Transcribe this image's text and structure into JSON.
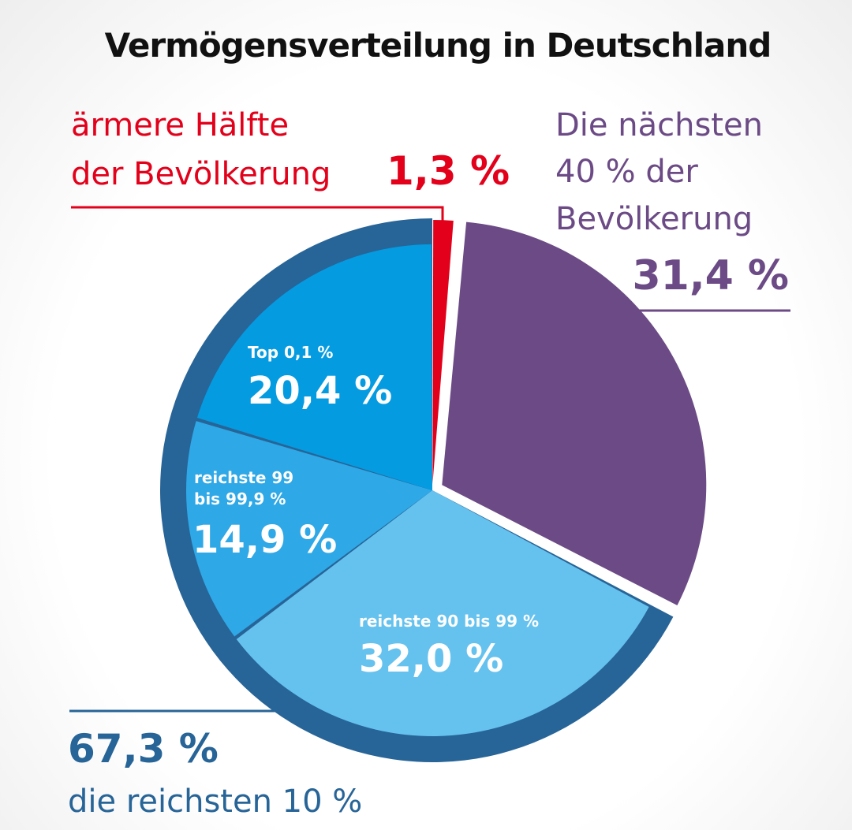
{
  "colors": {
    "red": "#e2001a",
    "purple": "#6b4a85",
    "dark_blue": "#276497",
    "blue_top": "#049be1",
    "blue_mid": "#2ea8e6",
    "blue_light": "#65c2ee",
    "text_dark": "#111111"
  },
  "chart_data": {
    "type": "pie",
    "title": "Vermögensverteilung in Deutschland",
    "unit": "%",
    "slices": [
      {
        "label": "ärmere Hälfte der Bevölkerung",
        "value": 1.3,
        "value_label": "1,3 %",
        "color": "#e2001a"
      },
      {
        "label": "Die nächsten 40 % der Bevölkerung",
        "value": 31.4,
        "value_label": "31,4 %",
        "color": "#6b4a85"
      },
      {
        "label": "reichste 90 bis 99 %",
        "value": 32.0,
        "value_label": "32,0 %",
        "color": "#65c2ee"
      },
      {
        "label": "reichste 99 bis 99,9 %",
        "value": 14.9,
        "value_label": "14,9 %",
        "color": "#2ea8e6"
      },
      {
        "label": "Top 0,1 %",
        "value": 20.4,
        "value_label": "20,4 %",
        "color": "#049be1"
      }
    ],
    "groups": [
      {
        "label": "die reichsten 10 %",
        "value": 67.3,
        "value_label": "67,3 %",
        "color": "#276497"
      }
    ]
  },
  "annotations": {
    "poorer_half": {
      "line1": "ärmere Hälfte",
      "line2": "der Bevölkerung",
      "value": "1,3 %"
    },
    "next_40": {
      "line1": "Die nächsten",
      "line2": "40 % der",
      "line3": "Bevölkerung",
      "value": "31,4 %"
    },
    "top_0_1": {
      "label": "Top 0,1 %",
      "value": "20,4 %"
    },
    "rich_99": {
      "line1": "reichste 99",
      "line2": "bis 99,9 %",
      "value": "14,9 %"
    },
    "rich_90": {
      "label": "reichste 90 bis 99 %",
      "value": "32,0 %"
    },
    "richest_10": {
      "value": "67,3 %",
      "label": "die reichsten 10 %"
    }
  }
}
